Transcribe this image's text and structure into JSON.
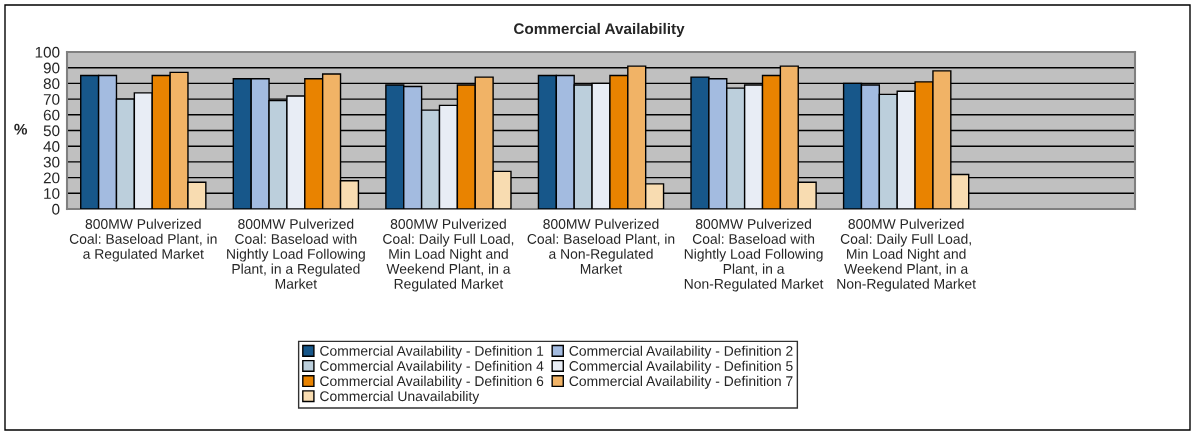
{
  "chart_data": {
    "type": "bar",
    "title": "Commercial Availability",
    "ylabel": "%",
    "categories": [
      "800MW Pulverized Coal: Baseload Plant, in a Regulated Market",
      "800MW Pulverized Coal: Baseload with Nightly Load Following Plant, in a Regulated Market",
      "800MW Pulverized Coal: Daily Full Load, Min Load Night and Weekend Plant, in a Regulated Market",
      "800MW Pulverized Coal: Baseload Plant, in a Non-Regulated Market",
      "800MW Pulverized Coal: Baseload with Nightly Load Following Plant, in a Non-Regulated Market",
      "800MW Pulverized Coal: Daily Full Load, Min Load Night and Weekend Plant, in a Non-Regulated Market",
      null
    ],
    "series": [
      {
        "name": "Commercial Availability - Definition 1",
        "color": "#17578a",
        "values": [
          85,
          83,
          79,
          85,
          84,
          80,
          null
        ]
      },
      {
        "name": "Commercial Availability - Definition 2",
        "color": "#a3bbe0",
        "values": [
          85,
          83,
          78,
          85,
          83,
          79,
          null
        ]
      },
      {
        "name": "Commercial Availability - Definition 4",
        "color": "#bccfdc",
        "values": [
          70,
          69,
          63,
          79,
          77,
          73,
          null
        ]
      },
      {
        "name": "Commercial Availability - Definition 5",
        "color": "#e8edf5",
        "values": [
          74,
          72,
          66,
          80,
          79,
          75,
          null
        ]
      },
      {
        "name": "Commercial Availability - Definition 6",
        "color": "#e98300",
        "values": [
          85,
          83,
          79,
          85,
          85,
          81,
          null
        ]
      },
      {
        "name": "Commercial Availability - Definition 7",
        "color": "#f1b366",
        "values": [
          87,
          86,
          84,
          91,
          91,
          88,
          null
        ]
      },
      {
        "name": "Commercial Unavailability",
        "color": "#f8dcb1",
        "values": [
          17,
          18,
          24,
          16,
          17,
          22,
          null
        ]
      }
    ],
    "ylim": [
      0,
      100
    ],
    "yticks": [
      0,
      10,
      20,
      30,
      40,
      50,
      60,
      70,
      80,
      90,
      100
    ],
    "grid": "y",
    "legend": "bottom"
  }
}
